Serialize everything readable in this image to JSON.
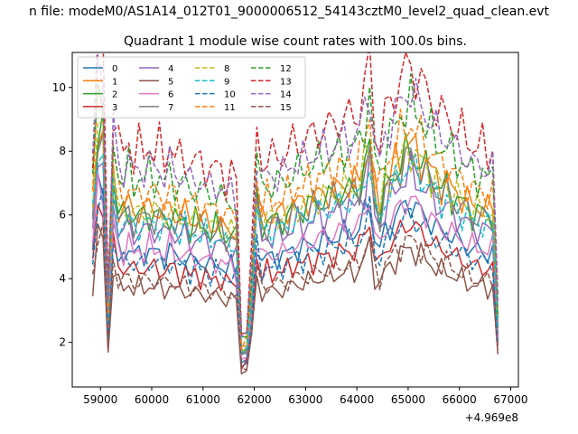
{
  "figure": {
    "suptitle": "n file: modeM0/AS1A14_012T01_9000006512_54143cztM0_level2_quad_clean.evt"
  },
  "chart_data": {
    "type": "line",
    "title": "Quadrant 1 module wise count rates with 100.0s bins.",
    "xlabel": "",
    "ylabel": "",
    "x_offset_label": "+4.969e8",
    "xlim": [
      58450,
      67150
    ],
    "ylim": [
      0.6,
      11.1
    ],
    "xticks": [
      59000,
      60000,
      61000,
      62000,
      63000,
      64000,
      65000,
      66000,
      67000
    ],
    "yticks": [
      2,
      4,
      6,
      8,
      10
    ],
    "grid": false,
    "legend_position": "top-left",
    "legend_columns": 4,
    "base_profile": {
      "x": [
        58850,
        58950,
        59050,
        59150,
        59250,
        59350,
        59450,
        59550,
        59650,
        59750,
        59850,
        59950,
        60050,
        60150,
        60250,
        60350,
        60450,
        60550,
        60650,
        60750,
        60850,
        60950,
        61050,
        61150,
        61250,
        61350,
        61450,
        61550,
        61650,
        61750,
        61850,
        61950,
        62050,
        62150,
        62250,
        62350,
        62450,
        62550,
        62650,
        62750,
        62850,
        62950,
        63050,
        63150,
        63250,
        63350,
        63450,
        63550,
        63650,
        63750,
        63850,
        63950,
        64050,
        64150,
        64250,
        64350,
        64450,
        64550,
        64650,
        64750,
        64850,
        64950,
        65050,
        65150,
        65250,
        65350,
        65450,
        65550,
        65650,
        65750,
        65850,
        65950,
        66050,
        66150,
        66250,
        66350,
        66450,
        66550,
        66650,
        66750
      ],
      "y": [
        1.0,
        1.4,
        1.38,
        0.45,
        1.15,
        1.0,
        0.97,
        1.02,
        0.95,
        0.99,
        0.97,
        1.0,
        0.97,
        0.99,
        0.95,
        1.0,
        0.96,
        0.94,
        0.97,
        0.91,
        0.95,
        0.92,
        0.93,
        0.89,
        0.92,
        0.9,
        0.87,
        0.89,
        0.86,
        0.28,
        0.3,
        0.58,
        1.07,
        0.92,
        0.96,
        0.94,
        0.97,
        0.95,
        0.98,
        1.0,
        1.02,
        1.0,
        1.04,
        1.03,
        1.06,
        1.05,
        1.08,
        1.07,
        1.1,
        1.09,
        1.12,
        1.1,
        1.14,
        1.22,
        1.33,
        1.06,
        1.0,
        1.12,
        1.16,
        1.2,
        1.25,
        1.29,
        1.31,
        1.26,
        1.24,
        1.21,
        1.17,
        1.14,
        1.11,
        1.12,
        1.08,
        1.06,
        1.05,
        1.02,
        1.0,
        0.99,
        1.0,
        0.97,
        0.99,
        0.42
      ]
    },
    "series": [
      {
        "name": "0",
        "scale": 4.9,
        "color": "#1f77b4",
        "dash": "solid"
      },
      {
        "name": "1",
        "scale": 6.3,
        "color": "#ff7f0e",
        "dash": "solid"
      },
      {
        "name": "2",
        "scale": 6.1,
        "color": "#2ca02c",
        "dash": "solid"
      },
      {
        "name": "3",
        "scale": 4.4,
        "color": "#d62728",
        "dash": "solid"
      },
      {
        "name": "4",
        "scale": 5.6,
        "color": "#9467bd",
        "dash": "solid"
      },
      {
        "name": "5",
        "scale": 3.8,
        "color": "#8c564b",
        "dash": "solid"
      },
      {
        "name": "6",
        "scale": 5.0,
        "color": "#e377c2",
        "dash": "solid"
      },
      {
        "name": "7",
        "scale": 6.0,
        "color": "#7f7f7f",
        "dash": "solid"
      },
      {
        "name": "8",
        "scale": 6.2,
        "color": "#bcbd22",
        "dash": "dashed"
      },
      {
        "name": "9",
        "scale": 5.8,
        "color": "#17becf",
        "dash": "dashed"
      },
      {
        "name": "10",
        "scale": 4.6,
        "color": "#1f77b4",
        "dash": "dashed"
      },
      {
        "name": "11",
        "scale": 6.8,
        "color": "#ff7f0e",
        "dash": "dashed"
      },
      {
        "name": "12",
        "scale": 7.3,
        "color": "#2ca02c",
        "dash": "dashed"
      },
      {
        "name": "13",
        "scale": 8.2,
        "color": "#d62728",
        "dash": "dashed"
      },
      {
        "name": "14",
        "scale": 7.6,
        "color": "#9467bd",
        "dash": "dashed"
      },
      {
        "name": "15",
        "scale": 4.0,
        "color": "#8c564b",
        "dash": "dashed"
      }
    ]
  }
}
